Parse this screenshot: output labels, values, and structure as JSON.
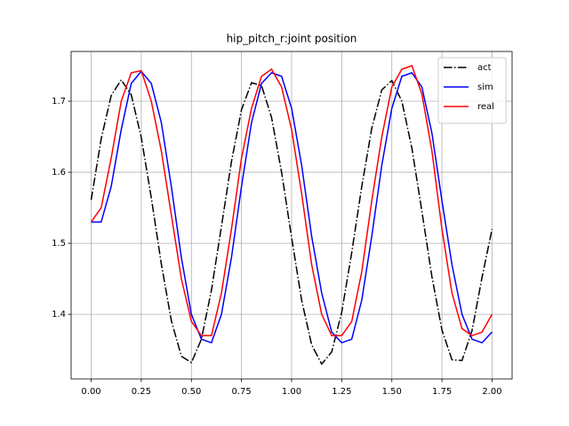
{
  "chart_data": {
    "type": "line",
    "title": "hip_pitch_r:joint position",
    "x": [
      0,
      0.05,
      0.1,
      0.15,
      0.2,
      0.25,
      0.3,
      0.35,
      0.4,
      0.45,
      0.5,
      0.55,
      0.6,
      0.65,
      0.7,
      0.75,
      0.8,
      0.85,
      0.9,
      0.95,
      1.0,
      1.05,
      1.1,
      1.15,
      1.2,
      1.25,
      1.3,
      1.35,
      1.4,
      1.45,
      1.5,
      1.55,
      1.6,
      1.65,
      1.7,
      1.75,
      1.8,
      1.85,
      1.9,
      1.95,
      2.0
    ],
    "series": [
      {
        "name": "act",
        "color": "#000000",
        "dash": "dashdot",
        "values": [
          1.561,
          1.647,
          1.708,
          1.73,
          1.709,
          1.649,
          1.564,
          1.471,
          1.391,
          1.341,
          1.332,
          1.365,
          1.434,
          1.524,
          1.615,
          1.688,
          1.726,
          1.722,
          1.677,
          1.6,
          1.508,
          1.42,
          1.357,
          1.33,
          1.347,
          1.403,
          1.487,
          1.58,
          1.662,
          1.716,
          1.729,
          1.7,
          1.634,
          1.545,
          1.453,
          1.378,
          1.336,
          1.335,
          1.377,
          1.452,
          1.52
        ]
      },
      {
        "name": "sim",
        "color": "#0000ff",
        "values": [
          1.53,
          1.53,
          1.58,
          1.66,
          1.725,
          1.742,
          1.725,
          1.67,
          1.58,
          1.48,
          1.4,
          1.365,
          1.36,
          1.4,
          1.48,
          1.58,
          1.67,
          1.725,
          1.74,
          1.735,
          1.69,
          1.61,
          1.51,
          1.43,
          1.375,
          1.36,
          1.365,
          1.42,
          1.51,
          1.61,
          1.69,
          1.735,
          1.74,
          1.72,
          1.655,
          1.56,
          1.47,
          1.4,
          1.365,
          1.36,
          1.375
        ]
      },
      {
        "name": "real",
        "color": "#ff0000",
        "values": [
          1.53,
          1.55,
          1.62,
          1.7,
          1.74,
          1.743,
          1.7,
          1.63,
          1.54,
          1.45,
          1.39,
          1.37,
          1.37,
          1.43,
          1.52,
          1.62,
          1.69,
          1.735,
          1.745,
          1.72,
          1.66,
          1.57,
          1.47,
          1.4,
          1.37,
          1.37,
          1.39,
          1.46,
          1.56,
          1.65,
          1.72,
          1.745,
          1.75,
          1.71,
          1.63,
          1.52,
          1.43,
          1.38,
          1.37,
          1.375,
          1.4
        ]
      }
    ],
    "xlim": [
      -0.1,
      2.1
    ],
    "ylim": [
      1.309,
      1.77
    ],
    "xticks": [
      {
        "value": 0,
        "label": "0.00"
      },
      {
        "value": 0.25,
        "label": "0.25"
      },
      {
        "value": 0.5,
        "label": "0.50"
      },
      {
        "value": 0.75,
        "label": "0.75"
      },
      {
        "value": 1,
        "label": "1.00"
      },
      {
        "value": 1.25,
        "label": "1.25"
      },
      {
        "value": 1.5,
        "label": "1.50"
      },
      {
        "value": 1.75,
        "label": "1.75"
      },
      {
        "value": 2,
        "label": "2.00"
      }
    ],
    "yticks": [
      1.4,
      1.5,
      1.6,
      1.7
    ],
    "grid": true,
    "legend": "upper-right"
  }
}
